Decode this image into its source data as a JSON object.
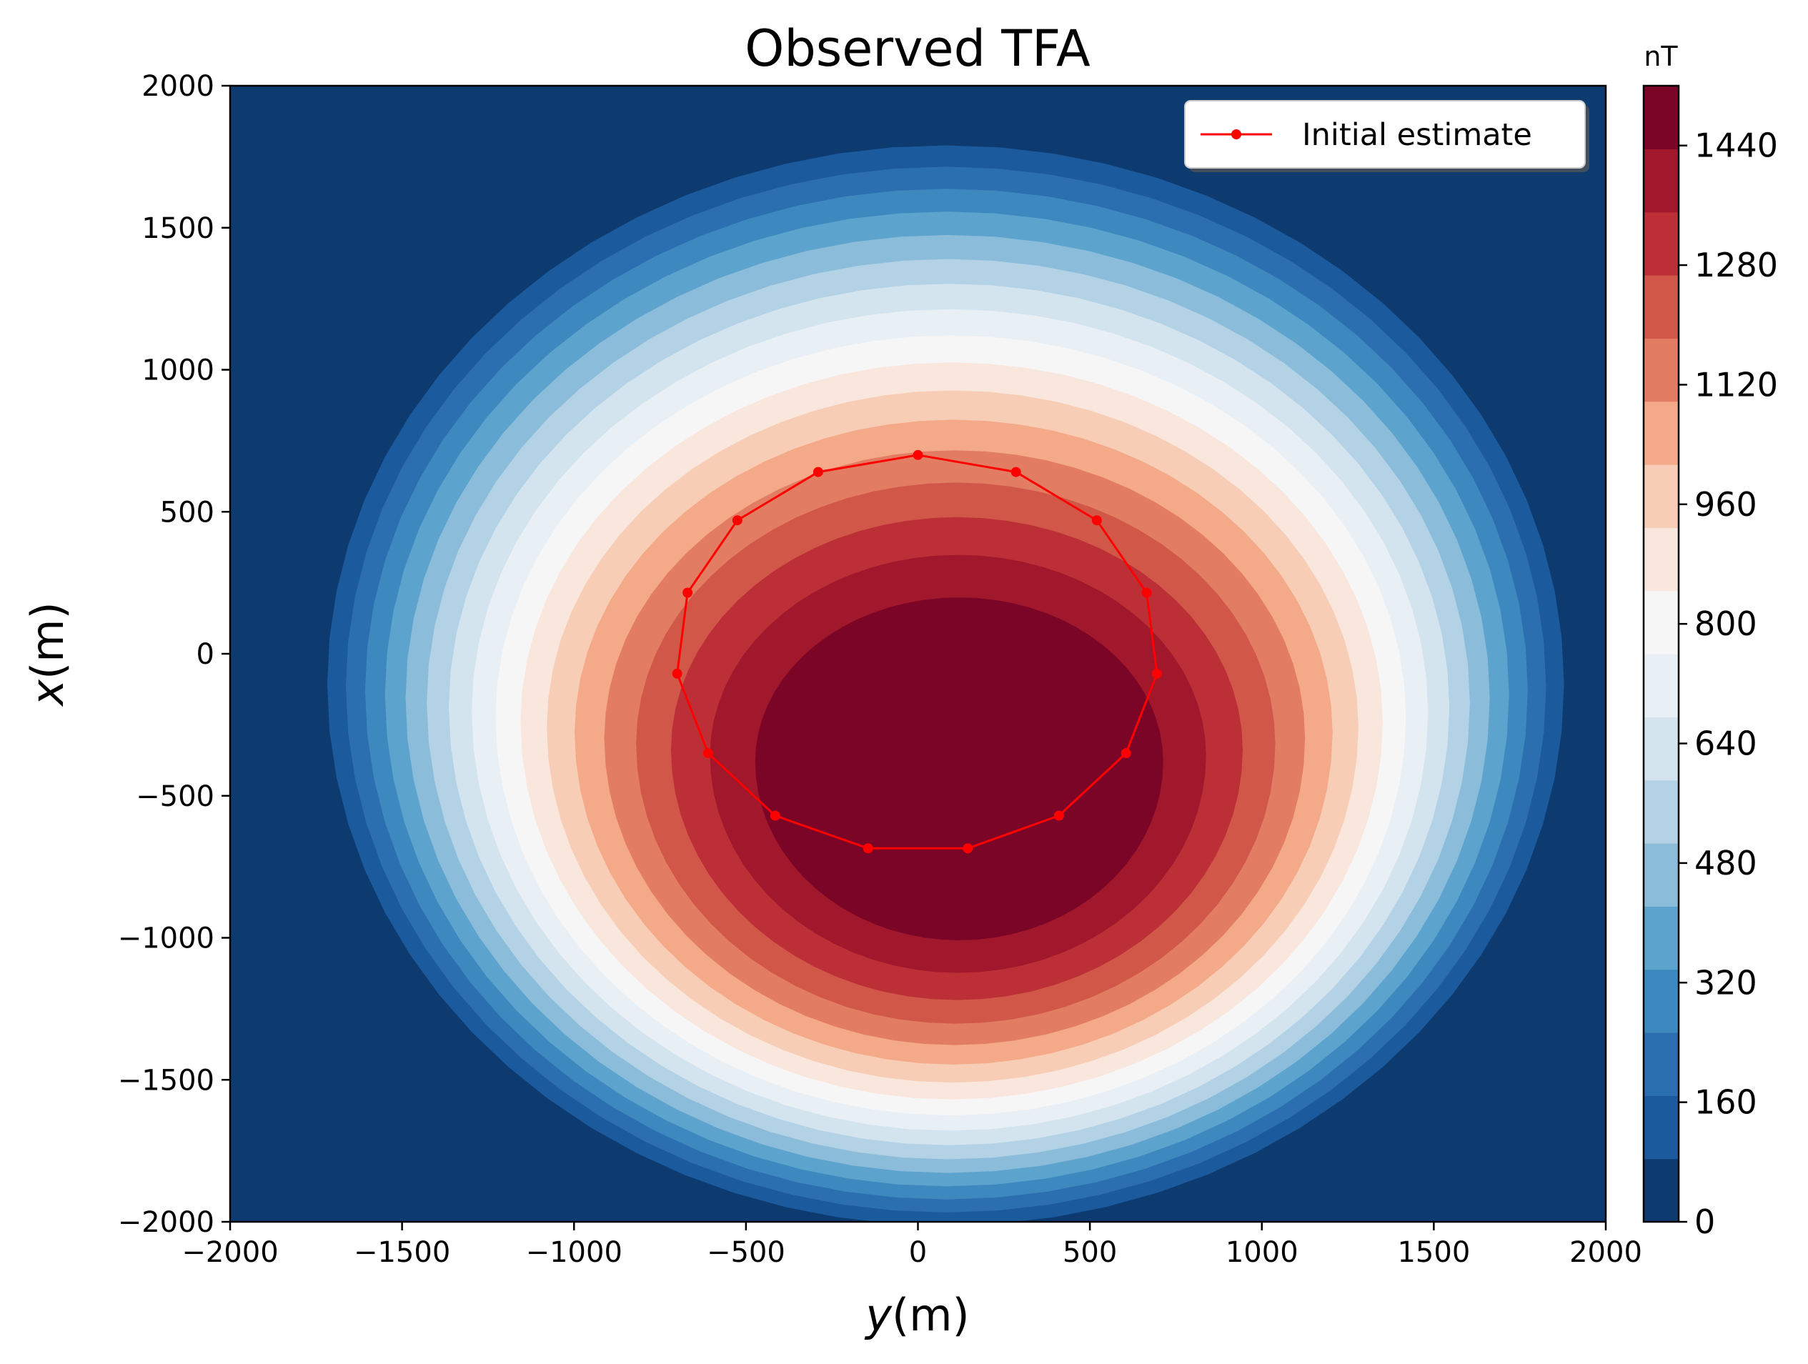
{
  "chart_data": {
    "type": "filled-contour",
    "title": "Observed TFA",
    "xlabel_var": "y",
    "xlabel_unit": "(m)",
    "ylabel_var": "x",
    "ylabel_unit": "(m)",
    "xlim": [
      -2000,
      2000
    ],
    "ylim": [
      -2000,
      2000
    ],
    "xticks": [
      -2000,
      -1500,
      -1000,
      -500,
      0,
      500,
      1000,
      1500,
      2000
    ],
    "xtick_labels": [
      "−2000",
      "−1500",
      "−1000",
      "−500",
      "0",
      "500",
      "1000",
      "1500",
      "2000"
    ],
    "yticks": [
      2000,
      1500,
      1000,
      500,
      0,
      -500,
      -1000,
      -1500,
      -2000
    ],
    "ytick_labels": [
      "2000",
      "1500",
      "1000",
      "500",
      "0",
      "−500",
      "−1000",
      "−1500",
      "−2000"
    ],
    "grid": false,
    "colorbar": {
      "unit": "nT",
      "min": 0,
      "max": 1520,
      "level_step": 80,
      "ticks": [
        0,
        160,
        320,
        480,
        640,
        800,
        960,
        1120,
        1280,
        1440
      ],
      "tick_labels": [
        "0",
        "160",
        "320",
        "480",
        "640",
        "800",
        "960",
        "1120",
        "1280",
        "1440"
      ],
      "colormap": "RdBu_r",
      "colors": [
        "#0d3b70",
        "#1c5a9e",
        "#2c6fb0",
        "#3d89bf",
        "#5ca3cd",
        "#8bbcda",
        "#b3d2e6",
        "#d3e4ef",
        "#e8eff5",
        "#f7f6f6",
        "#f9e6dd",
        "#f8cdb5",
        "#f4a988",
        "#e27d63",
        "#d15848",
        "#bd2f37",
        "#a1172b",
        "#7b0526"
      ]
    },
    "anomaly": {
      "peak_value": 1520,
      "peak_y": 120,
      "peak_x": -380,
      "background_value": 0
    },
    "series": [
      {
        "name": "Initial estimate",
        "color": "#ff0000",
        "marker": "circle",
        "closed": true,
        "points": [
          {
            "y": 0,
            "x": 700
          },
          {
            "y": 285,
            "x": 640
          },
          {
            "y": 520,
            "x": 470
          },
          {
            "y": 665,
            "x": 215
          },
          {
            "y": 695,
            "x": -70
          },
          {
            "y": 605,
            "x": -350
          },
          {
            "y": 410,
            "x": -570
          },
          {
            "y": 145,
            "x": -685
          },
          {
            "y": -145,
            "x": -685
          },
          {
            "y": -415,
            "x": -570
          },
          {
            "y": -610,
            "x": -350
          },
          {
            "y": -700,
            "x": -70
          },
          {
            "y": -670,
            "x": 215
          },
          {
            "y": -525,
            "x": 470
          },
          {
            "y": -290,
            "x": 640
          }
        ]
      }
    ],
    "legend": {
      "position": "top-right",
      "entries": [
        "Initial estimate"
      ]
    }
  }
}
